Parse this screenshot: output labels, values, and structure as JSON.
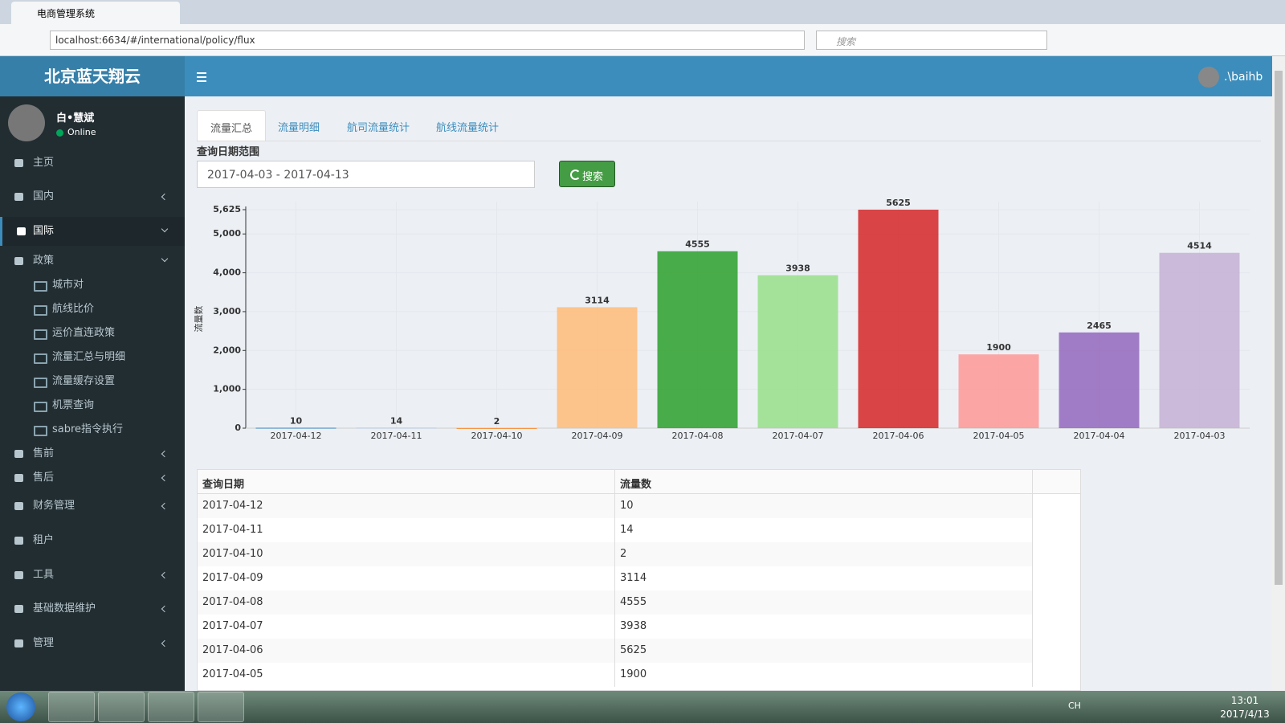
{
  "browser": {
    "tab_title": "电商管理系统",
    "url": "localhost:6634/#/international/policy/flux",
    "search_placeholder": "搜索"
  },
  "header": {
    "brand": "北京蓝天翔云",
    "user": ".\\baihb"
  },
  "sidebar": {
    "user_name": "白•慧斌",
    "status": "Online",
    "menu": [
      "主页",
      "国内",
      "国际",
      "政策",
      "城市对",
      "航线比价",
      "运价直连政策",
      "流量汇总与明细",
      "流量缓存设置",
      "机票查询",
      "sabre指令执行",
      "售前",
      "售后",
      "财务管理",
      "租户",
      "工具",
      "基础数据维护",
      "管理"
    ]
  },
  "tabs": [
    "流量汇总",
    "流量明细",
    "航司流量统计",
    "航线流量统计"
  ],
  "form": {
    "label": "查询日期范围",
    "date_range": "2017-04-03 - 2017-04-13",
    "button": "搜索"
  },
  "chart_data": {
    "type": "bar",
    "y_label": "流量数",
    "categories": [
      "2017-04-12",
      "2017-04-11",
      "2017-04-10",
      "2017-04-09",
      "2017-04-08",
      "2017-04-07",
      "2017-04-06",
      "2017-04-05",
      "2017-04-04",
      "2017-04-03"
    ],
    "values": [
      10,
      14,
      2,
      3114,
      4555,
      3938,
      5625,
      1900,
      2465,
      4514
    ],
    "colors": [
      "#1f77b4",
      "#aec7e8",
      "#ff7f0e",
      "#ffbb78",
      "#2ca02c",
      "#98df8a",
      "#d62728",
      "#ff9896",
      "#9467bd",
      "#c5b0d5"
    ],
    "ylim": [
      0,
      5625
    ],
    "yticks": [
      0,
      {
        "value": 1000,
        "label": "1,000"
      },
      {
        "value": 2000,
        "label": "2,000"
      },
      {
        "value": 3000,
        "label": "3,000"
      },
      {
        "value": 4000,
        "label": "4,000"
      },
      {
        "value": 5000,
        "label": "5,000"
      },
      {
        "value": 5625,
        "label": "5,625"
      }
    ],
    "grid": true
  },
  "table": {
    "headers": [
      "查询日期",
      "流量数"
    ],
    "rows": [
      [
        "2017-04-12",
        "10"
      ],
      [
        "2017-04-11",
        "14"
      ],
      [
        "2017-04-10",
        "2"
      ],
      [
        "2017-04-09",
        "3114"
      ],
      [
        "2017-04-08",
        "4555"
      ],
      [
        "2017-04-07",
        "3938"
      ],
      [
        "2017-04-06",
        "5625"
      ],
      [
        "2017-04-05",
        "1900"
      ]
    ]
  },
  "taskbar": {
    "lang": "CH",
    "time": "13:01",
    "date": "2017/4/13"
  }
}
